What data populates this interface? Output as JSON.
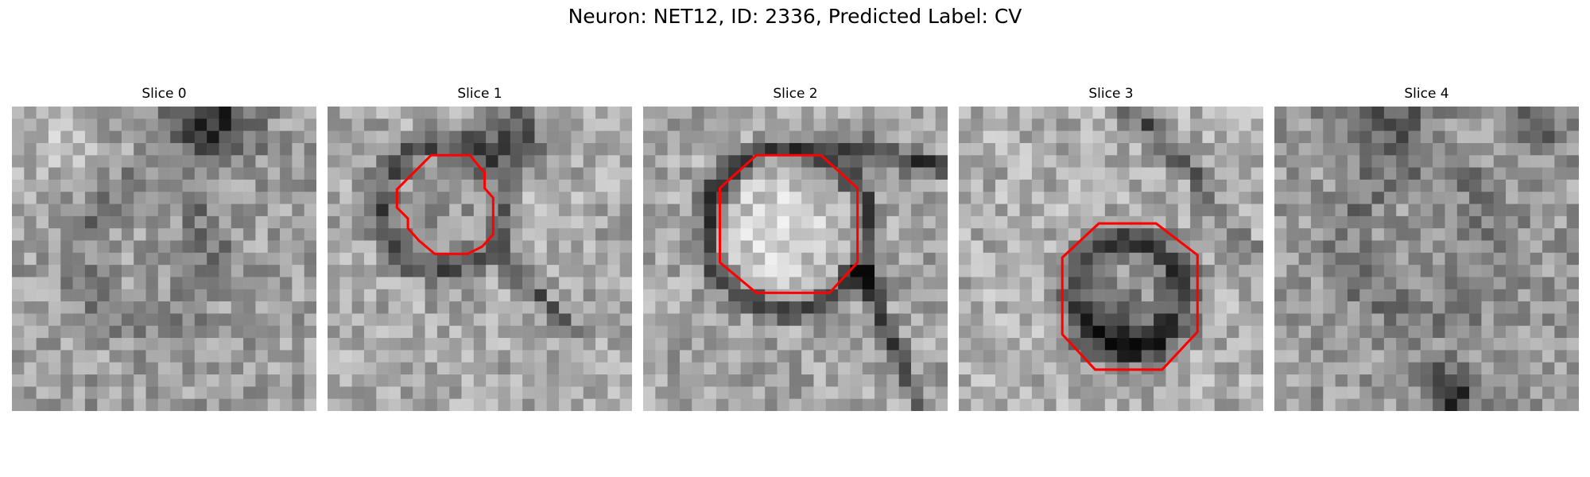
{
  "figure": {
    "title": "Neuron: NET12, ID: 2336, Predicted Label: CV",
    "overlay_color": "#ff0000",
    "colormap": "grayscale",
    "grid_size": 25
  },
  "slices": [
    {
      "title": "Slice 0",
      "has_contour": false
    },
    {
      "title": "Slice 1",
      "has_contour": true
    },
    {
      "title": "Slice 2",
      "has_contour": true
    },
    {
      "title": "Slice 3",
      "has_contour": true
    },
    {
      "title": "Slice 4",
      "has_contour": false
    }
  ]
}
